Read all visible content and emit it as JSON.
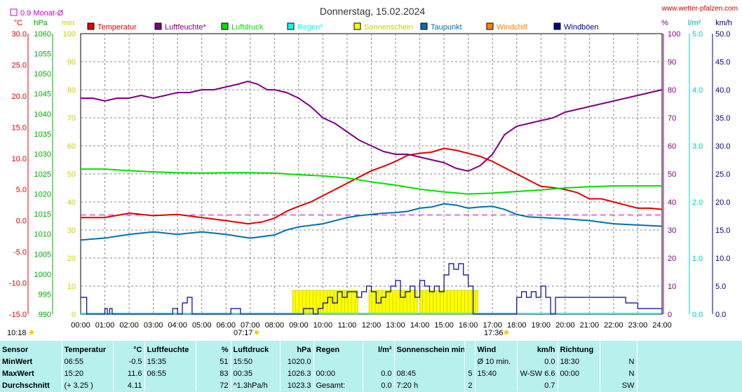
{
  "header": {
    "title": "Donnerstag, 15.02.2024",
    "site": "www.wetter-pfalzen.com",
    "avg_label": "0.9 Monat-Ø",
    "unit_temp": "°C",
    "unit_hpa": "hPa",
    "unit_min": "min",
    "unit_pct": "%",
    "unit_lm2": "l/m²",
    "unit_kmh": "km/h"
  },
  "legend": [
    {
      "label": "Temperatur",
      "color": "#e00000"
    },
    {
      "label": "Luftfeuchte*",
      "color": "#800080"
    },
    {
      "label": "Luftdruck",
      "color": "#00e000"
    },
    {
      "label": "Regen*",
      "color": "#00ffff"
    },
    {
      "label": "Sonnenschein",
      "color": "#ffff00"
    },
    {
      "label": "Taupunkt",
      "color": "#0070b0"
    },
    {
      "label": "Windchill",
      "color": "#ff8000"
    },
    {
      "label": "Windböen",
      "color": "#000090"
    }
  ],
  "sun": {
    "rise": "07:17",
    "set": "17:36",
    "now": "10:18"
  },
  "chart_data": {
    "type": "line",
    "x_range": [
      0,
      24
    ],
    "x_ticks": [
      "00:00",
      "01:00",
      "02:00",
      "03:00",
      "04:00",
      "05:00",
      "06:00",
      "07:00",
      "08:00",
      "09:00",
      "10:00",
      "11:00",
      "12:00",
      "13:00",
      "14:00",
      "15:00",
      "16:00",
      "17:00",
      "18:00",
      "19:00",
      "20:00",
      "21:00",
      "22:00",
      "23:00",
      "24:00"
    ],
    "axes": {
      "temp": {
        "min": -15,
        "max": 30,
        "ticks": [
          "30.0",
          "25.0",
          "20.0",
          "15.0",
          "10.0",
          "5.0",
          "0.0",
          "-5.0",
          "-10.0",
          "-15.0"
        ]
      },
      "hpa": {
        "min": 990,
        "max": 1060,
        "ticks": [
          "1060",
          "1055",
          "1050",
          "1045",
          "1040",
          "1035",
          "1030",
          "1025",
          "1020",
          "1015",
          "1010",
          "1005",
          "1000",
          "995",
          "990"
        ]
      },
      "min": {
        "min": 0,
        "max": 100,
        "ticks": [
          "100",
          "90",
          "80",
          "70",
          "60",
          "50",
          "40",
          "30",
          "20",
          "10",
          "0"
        ]
      },
      "pct": {
        "min": 0,
        "max": 100,
        "ticks": [
          "100",
          "90",
          "80",
          "70",
          "60",
          "50",
          "40",
          "30",
          "20",
          "10",
          "0"
        ]
      },
      "lm2": {
        "min": 0,
        "max": 5,
        "ticks": [
          "5.0",
          "4.0",
          "3.0",
          "2.0",
          "1.0",
          "0.0"
        ]
      },
      "kmh": {
        "min": 0,
        "max": 50,
        "ticks": [
          "50.0",
          "45.0",
          "40.0",
          "35.0",
          "30.0",
          "25.0",
          "20.0",
          "15.0",
          "10.0",
          "5.0",
          "0.0"
        ]
      }
    },
    "avg_line_temp": 0.9,
    "series": [
      {
        "name": "Temperatur",
        "axis": "temp",
        "color": "#e00000",
        "x": [
          0,
          1,
          2,
          3,
          4,
          5,
          6,
          6.9,
          7.5,
          8,
          8.5,
          9,
          9.5,
          10,
          10.5,
          11,
          11.5,
          12,
          12.5,
          13,
          13.5,
          14,
          14.5,
          15,
          15.5,
          16,
          16.5,
          17,
          17.5,
          18,
          18.5,
          19,
          19.5,
          20,
          20.5,
          21,
          21.5,
          22,
          22.5,
          23,
          23.5,
          24
        ],
        "y": [
          0.5,
          0.5,
          1.2,
          0.8,
          1.0,
          0.5,
          0.0,
          -0.5,
          -0.2,
          0.4,
          1.5,
          2.3,
          3.0,
          4.0,
          5.0,
          6.0,
          7.0,
          8.0,
          8.7,
          9.5,
          10.5,
          10.8,
          11.0,
          11.6,
          11.3,
          10.8,
          10.3,
          9.5,
          8.5,
          7.5,
          6.5,
          5.5,
          5.3,
          5.0,
          4.5,
          3.5,
          3.5,
          3.0,
          2.5,
          2.0,
          2.0,
          1.8
        ]
      },
      {
        "name": "Luftfeuchte*",
        "axis": "pct",
        "color": "#800080",
        "x": [
          0,
          0.5,
          1,
          1.5,
          2,
          2.5,
          3,
          3.5,
          4,
          4.5,
          5,
          5.5,
          6,
          6.5,
          6.9,
          7.3,
          7.7,
          8,
          8.5,
          9,
          9.5,
          10,
          10.5,
          11,
          11.5,
          12,
          12.5,
          13,
          13.5,
          14,
          14.5,
          15,
          15.5,
          16,
          16.5,
          17,
          17.5,
          18,
          18.5,
          19,
          19.5,
          20,
          20.5,
          21,
          21.5,
          22,
          22.5,
          23,
          23.5,
          24
        ],
        "y": [
          77,
          77,
          76,
          77,
          77,
          78,
          77,
          78,
          79,
          79,
          80,
          80,
          81,
          82,
          83,
          82,
          80,
          80,
          79,
          77,
          74,
          70,
          68,
          65,
          62,
          60,
          58,
          57,
          57,
          56,
          55,
          54,
          52,
          51,
          53,
          57,
          64,
          67,
          68,
          69,
          70,
          72,
          73,
          74,
          75,
          76,
          77,
          78,
          79,
          80
        ]
      },
      {
        "name": "Luftdruck",
        "axis": "hpa",
        "color": "#00e000",
        "x": [
          0,
          1,
          2,
          3,
          4,
          5,
          6,
          7,
          8,
          9,
          10,
          11,
          12,
          13,
          14,
          15,
          16,
          17,
          18,
          19,
          20,
          21,
          22,
          23,
          24
        ],
        "y": [
          1026.2,
          1026.2,
          1025.8,
          1025.5,
          1025.3,
          1025.2,
          1025.3,
          1025.3,
          1025.2,
          1024.8,
          1024.5,
          1024.0,
          1023.0,
          1022.2,
          1021.2,
          1020.5,
          1020.0,
          1020.2,
          1020.6,
          1021.0,
          1021.5,
          1021.8,
          1022.0,
          1022.0,
          1022.0
        ]
      },
      {
        "name": "Taupunkt",
        "axis": "temp",
        "color": "#0070b0",
        "x": [
          0,
          1,
          2,
          3,
          4,
          5,
          6,
          7,
          8,
          8.5,
          9,
          10,
          10.5,
          11,
          11.5,
          12,
          12.5,
          13,
          13.5,
          14,
          14.5,
          15,
          15.5,
          16,
          16.5,
          17,
          17.5,
          18,
          18.5,
          19,
          20,
          21,
          22,
          23,
          24
        ],
        "y": [
          -3.1,
          -2.8,
          -2.2,
          -1.8,
          -2.2,
          -1.8,
          -2.2,
          -2.8,
          -2.3,
          -1.5,
          -1.0,
          -0.5,
          0.0,
          0.5,
          0.8,
          1.0,
          1.2,
          1.3,
          1.5,
          2.0,
          2.2,
          2.7,
          2.5,
          2.0,
          2.2,
          2.3,
          1.8,
          1.0,
          0.6,
          0.5,
          0.3,
          0.0,
          -0.5,
          -0.7,
          -0.9
        ]
      },
      {
        "name": "Windböen",
        "axis": "kmh",
        "color": "#000090",
        "x": [
          0,
          0.2,
          0.25,
          0.9,
          1.0,
          1.1,
          1.2,
          1.3,
          3.6,
          3.8,
          4.0,
          4.2,
          4.4,
          4.6,
          6.0,
          6.2,
          6.4,
          6.6,
          8.8,
          9.0,
          9.2,
          9.4,
          9.6,
          9.8,
          10.0,
          10.2,
          10.4,
          10.6,
          10.8,
          11.0,
          11.2,
          11.4,
          11.6,
          11.8,
          12.0,
          12.2,
          12.4,
          12.6,
          12.8,
          13.0,
          13.2,
          13.4,
          13.6,
          13.8,
          14.0,
          14.2,
          14.4,
          14.6,
          14.8,
          15.0,
          15.2,
          15.4,
          15.6,
          15.8,
          16.0,
          16.2,
          16.4,
          16.6,
          16.8,
          17.2,
          17.6,
          18.0,
          18.2,
          18.4,
          18.6,
          18.8,
          19.0,
          19.2,
          19.4,
          19.6,
          19.8,
          20.0,
          20.5,
          21.0,
          21.5,
          22.0,
          22.5,
          23.0,
          23.5,
          24
        ],
        "y": [
          3,
          3,
          0,
          0,
          1,
          0,
          1,
          0,
          0,
          1,
          0,
          2,
          3,
          0,
          0,
          1,
          1,
          0,
          0,
          0,
          1,
          1,
          0,
          1,
          2,
          3,
          2,
          4,
          3,
          4,
          4,
          3,
          4,
          5,
          4,
          2,
          3,
          4,
          5,
          6,
          3,
          4,
          5,
          3,
          6,
          5,
          4,
          5,
          4,
          7,
          9,
          8,
          9,
          7,
          5,
          0,
          0,
          0,
          0,
          0,
          0,
          3,
          4,
          3,
          4,
          3,
          5,
          3,
          0,
          3,
          3,
          3,
          3,
          3,
          3,
          3,
          2,
          1,
          1,
          0
        ]
      }
    ],
    "sunshine": {
      "axis": "min",
      "x": [
        8.75,
        11.45,
        11.9,
        13.9,
        14.0,
        16.4
      ],
      "note": "segments as pairs"
    }
  },
  "stats": {
    "head": [
      "Sensor",
      "Temperatur",
      "°C",
      "Luftfeuchte",
      "%",
      "Luftdruck",
      "hPa",
      "Regen",
      "l/m²",
      "Sonnenschein min",
      "",
      "Wind",
      "km/h",
      "Richtung",
      ""
    ],
    "rows": [
      [
        "MinWert",
        "06:55",
        "-0.5",
        "15:35",
        "51",
        "15:50",
        "1020.0",
        "",
        "",
        "",
        "",
        "Ø 10 min.",
        "0.0",
        "18:30",
        "N"
      ],
      [
        "MaxWert",
        "15:20",
        "11.6",
        "06:55",
        "83",
        "00:35",
        "1026.3",
        "00:00",
        "0.0",
        "08:45",
        "5",
        "15:40",
        "W-SW 6.6",
        "00:00",
        "N"
      ],
      [
        "Durchschnitt",
        "(+ 3.25 )",
        "4.11",
        "",
        "72",
        "^1.3hPa/h",
        "1023.3",
        "Gesamt:",
        "0.0",
        "7:20 h",
        "2",
        "",
        "0.7",
        "",
        "SW"
      ]
    ]
  }
}
